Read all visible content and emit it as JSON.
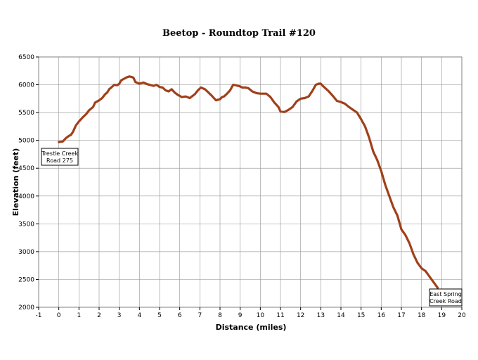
{
  "chart_data": {
    "type": "line",
    "title": "Beetop - Roundtop Trail #120",
    "xlabel": "Distance (miles)",
    "ylabel": "Elevation (feet)",
    "xlim": [
      -1,
      20
    ],
    "ylim": [
      2000,
      6500
    ],
    "xticks": [
      -1,
      0,
      1,
      2,
      3,
      4,
      5,
      6,
      7,
      8,
      9,
      10,
      11,
      12,
      13,
      14,
      15,
      16,
      17,
      18,
      19,
      20
    ],
    "yticks": [
      2000,
      2500,
      3000,
      3500,
      4000,
      4500,
      5000,
      5500,
      6000,
      6500
    ],
    "grid": true,
    "line_color": "#a0401a",
    "series": [
      {
        "x": [
          0,
          0.2,
          0.35,
          0.5,
          0.6,
          0.7,
          0.85,
          1.0,
          1.2,
          1.35,
          1.5,
          1.7,
          1.8,
          1.9,
          2.0,
          2.15,
          2.3,
          2.4,
          2.5,
          2.6,
          2.75,
          2.9,
          3.0,
          3.1,
          3.2,
          3.35,
          3.5,
          3.7,
          3.8,
          4.0,
          4.2,
          4.4,
          4.5,
          4.7,
          4.85,
          5.0,
          5.15,
          5.3,
          5.45,
          5.6,
          5.75,
          5.9,
          6.1,
          6.3,
          6.5,
          6.6,
          6.75,
          6.9,
          7.05,
          7.25,
          7.4,
          7.6,
          7.8,
          8.0,
          8.1,
          8.2,
          8.35,
          8.5,
          8.65,
          8.8,
          9.0,
          9.1,
          9.25,
          9.4,
          9.6,
          9.8,
          10.0,
          10.15,
          10.3,
          10.5,
          10.7,
          10.9,
          11.0,
          11.2,
          11.4,
          11.6,
          11.8,
          12.0,
          12.2,
          12.4,
          12.6,
          12.75,
          12.9,
          13.0,
          13.1,
          13.25,
          13.4,
          13.6,
          13.8,
          14.0,
          14.2,
          14.4,
          14.6,
          14.8,
          15.0,
          15.2,
          15.4,
          15.6,
          15.8,
          16.0,
          16.2,
          16.4,
          16.6,
          16.8,
          17.0,
          17.2,
          17.4,
          17.6,
          17.8,
          18.0,
          18.2,
          18.4,
          18.6,
          18.8
        ],
        "y": [
          4970,
          4980,
          5040,
          5080,
          5100,
          5150,
          5270,
          5340,
          5420,
          5470,
          5540,
          5600,
          5680,
          5700,
          5720,
          5760,
          5830,
          5860,
          5920,
          5950,
          6000,
          5990,
          6020,
          6080,
          6100,
          6130,
          6150,
          6130,
          6050,
          6020,
          6040,
          6010,
          6000,
          5980,
          6000,
          5960,
          5950,
          5900,
          5880,
          5920,
          5860,
          5820,
          5780,
          5790,
          5760,
          5790,
          5830,
          5900,
          5950,
          5920,
          5870,
          5800,
          5720,
          5740,
          5780,
          5790,
          5840,
          5900,
          6000,
          5990,
          5970,
          5950,
          5950,
          5940,
          5880,
          5850,
          5840,
          5840,
          5840,
          5780,
          5680,
          5600,
          5520,
          5510,
          5550,
          5600,
          5700,
          5750,
          5760,
          5790,
          5900,
          6000,
          6020,
          6020,
          5980,
          5930,
          5880,
          5800,
          5710,
          5690,
          5660,
          5600,
          5550,
          5500,
          5380,
          5250,
          5050,
          4800,
          4650,
          4450,
          4200,
          4000,
          3800,
          3650,
          3400,
          3300,
          3150,
          2950,
          2800,
          2700,
          2650,
          2550,
          2450,
          2350
        ]
      }
    ],
    "annotations": [
      {
        "lines": [
          "Trestle Creek",
          "Road 275"
        ],
        "x": 0,
        "y": 4970
      },
      {
        "lines": [
          "East Spring",
          "Creek Road"
        ],
        "x": 18.8,
        "y": 2350
      }
    ]
  }
}
